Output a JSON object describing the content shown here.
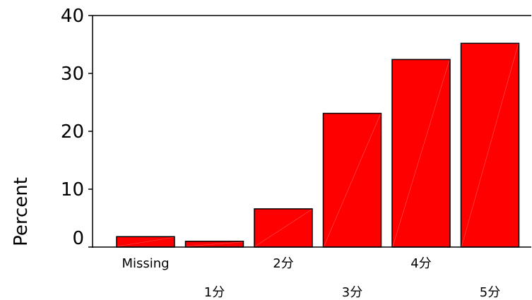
{
  "chart_data": {
    "type": "bar",
    "categories": [
      "Missing",
      "1分",
      "2分",
      "3分",
      "4分",
      "5分"
    ],
    "values": [
      1.8,
      1.0,
      6.6,
      23.1,
      32.4,
      35.2
    ],
    "title": "",
    "xlabel": "",
    "ylabel": "Percent",
    "ylim": [
      0,
      40
    ],
    "yticks": [
      0,
      10,
      20,
      30,
      40
    ],
    "grid": false,
    "bar_color": "#ff0000",
    "bar_edge_color": "#000000"
  }
}
